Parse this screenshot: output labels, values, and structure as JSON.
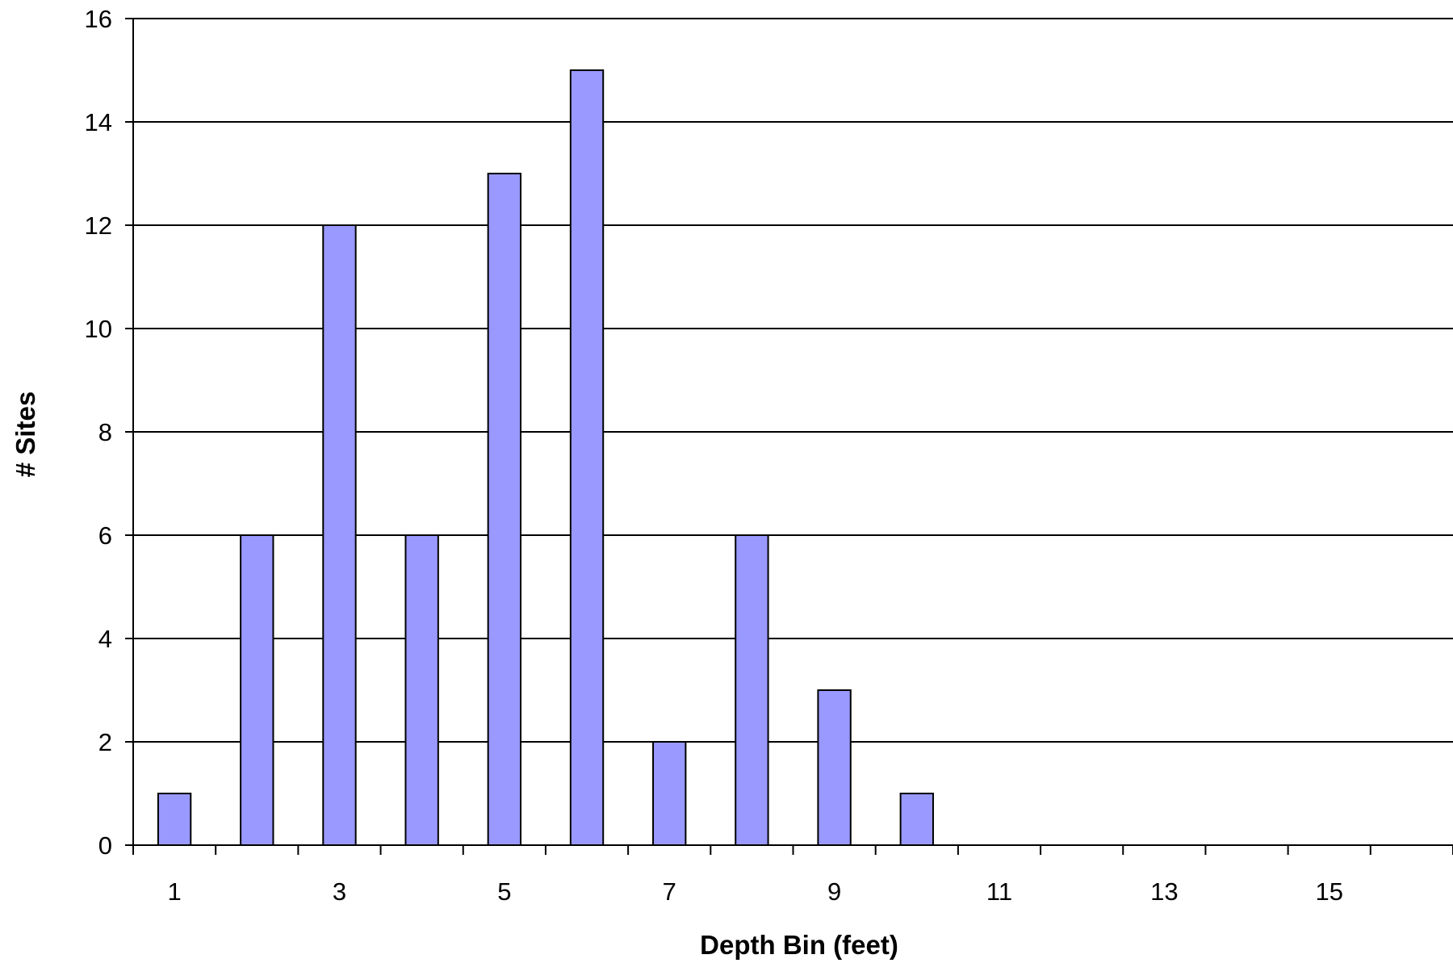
{
  "chart_data": {
    "type": "bar",
    "categories": [
      "1",
      "2",
      "3",
      "4",
      "5",
      "6",
      "7",
      "8",
      "9",
      "10",
      "11",
      "12",
      "13",
      "14",
      "15",
      "16"
    ],
    "x_tick_labels": [
      "1",
      "3",
      "5",
      "7",
      "9",
      "11",
      "13",
      "15"
    ],
    "values": [
      1,
      6,
      12,
      6,
      13,
      15,
      2,
      6,
      3,
      1,
      0,
      0,
      0,
      0,
      0,
      0
    ],
    "y_ticks": [
      "0",
      "2",
      "4",
      "6",
      "8",
      "10",
      "12",
      "14",
      "16"
    ],
    "xlabel": "Depth Bin (feet)",
    "ylabel": "# Sites",
    "ylim": [
      0,
      16
    ],
    "grid": true,
    "legend": "none",
    "colors": {
      "bar_fill": "#9999ff",
      "bar_stroke": "#000000",
      "grid": "#000000",
      "background": "#ffffff"
    }
  }
}
